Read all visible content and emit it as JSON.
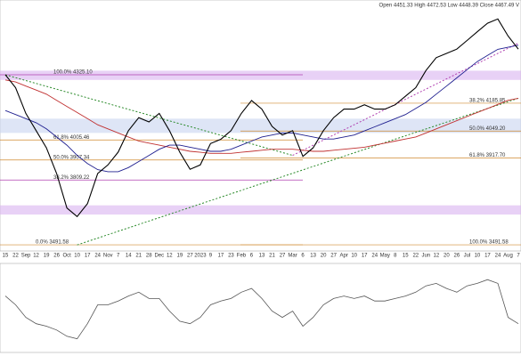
{
  "chart_data": {
    "type": "line",
    "header": "Open 4451.33  High 4472.53  Low 4448.39  Close 4467.49  V",
    "categories": [
      "15",
      "22",
      "Sep",
      "12",
      "19",
      "26",
      "Oct",
      "10",
      "17",
      "24",
      "Nov",
      "7",
      "14",
      "21",
      "28",
      "Dec",
      "12",
      "19",
      "27",
      "2023",
      "9",
      "17",
      "23",
      "Feb",
      "6",
      "13",
      "21",
      "27",
      "Mar",
      "6",
      "13",
      "20",
      "27",
      "Apr",
      "10",
      "17",
      "24",
      "May",
      "8",
      "15",
      "22",
      "Jun",
      "12",
      "20",
      "26",
      "Jul",
      "10",
      "17",
      "24",
      "Aug",
      "7"
    ],
    "series": [
      {
        "color": "#000000",
        "values": [
          4325,
          4262,
          4136,
          4051,
          3967,
          3841,
          3672,
          3630,
          3693,
          3841,
          3883,
          3946,
          4051,
          4115,
          4094,
          4136,
          4051,
          3946,
          3862,
          3883,
          3988,
          4009,
          4051,
          4136,
          4199,
          4157,
          4072,
          4030,
          4051,
          3925,
          3967,
          4051,
          4115,
          4157,
          4157,
          4178,
          4157,
          4157,
          4178,
          4220,
          4262,
          4346,
          4409,
          4430,
          4451,
          4493,
          4536,
          4578,
          4599,
          4515,
          4451
        ]
      },
      {
        "color": "#1f1f8f",
        "values": [
          4150,
          4130,
          4110,
          4090,
          4060,
          4020,
          3980,
          3930,
          3890,
          3860,
          3850,
          3850,
          3870,
          3900,
          3930,
          3960,
          3980,
          3980,
          3970,
          3960,
          3950,
          3950,
          3960,
          3980,
          4000,
          4020,
          4030,
          4040,
          4040,
          4030,
          4020,
          4010,
          4010,
          4020,
          4030,
          4050,
          4070,
          4090,
          4110,
          4130,
          4160,
          4190,
          4230,
          4270,
          4310,
          4350,
          4390,
          4420,
          4450,
          4460,
          4470
        ]
      },
      {
        "color": "#c03030",
        "values": [
          4300,
          4290,
          4270,
          4250,
          4230,
          4200,
          4170,
          4140,
          4110,
          4080,
          4060,
          4040,
          4020,
          4000,
          3990,
          3980,
          3970,
          3960,
          3950,
          3945,
          3940,
          3940,
          3940,
          3945,
          3950,
          3955,
          3960,
          3960,
          3960,
          3955,
          3950,
          3950,
          3955,
          3960,
          3965,
          3970,
          3980,
          3990,
          4000,
          4010,
          4020,
          4040,
          4060,
          4080,
          4100,
          4120,
          4140,
          4160,
          4180,
          4200,
          4210
        ]
      }
    ],
    "ylim": [
      3470,
      4683
    ],
    "bands": [
      {
        "range": [
          4300,
          4345
        ],
        "color": "#d9b3f0"
      },
      {
        "range": [
          3640,
          3685
        ],
        "color": "#d9b3f0"
      },
      {
        "range": [
          4040,
          4110
        ],
        "color": "#c8d4f0"
      }
    ],
    "levels": [
      {
        "value": 4325.1,
        "label": "100.0% 4325.10",
        "color": "#b040b0",
        "side": "left"
      },
      {
        "value": 4005.46,
        "label": "61.8% 4005.46",
        "color": "#d08a30",
        "side": "left"
      },
      {
        "value": 3907.34,
        "label": "50.0% 3907.34",
        "color": "#d08a30",
        "side": "left"
      },
      {
        "value": 3809.22,
        "label": "38.2% 3809.22",
        "color": "#b040b0",
        "side": "left"
      },
      {
        "value": 3491.58,
        "label": "0.0% 3491.58",
        "color": "#d08a30",
        "side": "left"
      },
      {
        "value": 4185.85,
        "label": "38.2% 4185.85",
        "color": "#d08a30",
        "side": "right"
      },
      {
        "value": 4049.2,
        "label": "50.0% 4049.20",
        "color": "#d08a30",
        "side": "right"
      },
      {
        "value": 3917.7,
        "label": "61.8% 3917.70",
        "color": "#d08a30",
        "side": "right"
      },
      {
        "value": 3491.58,
        "label": "100.0% 3491.58",
        "color": "#d08a30",
        "side": "right"
      }
    ],
    "trendlines": [
      {
        "from": [
          7,
          3491
        ],
        "to": [
          50,
          4210
        ],
        "color": "#2a8a2a"
      },
      {
        "from": [
          0,
          4325
        ],
        "to": [
          28,
          3930
        ],
        "color": "#2a8a2a"
      },
      {
        "from": [
          28,
          3930
        ],
        "to": [
          50,
          4480
        ],
        "color": "#b040b0"
      }
    ],
    "rsi": {
      "color": "#555555",
      "values": [
        62,
        55,
        45,
        40,
        38,
        35,
        30,
        28,
        40,
        55,
        55,
        58,
        62,
        65,
        60,
        60,
        50,
        42,
        40,
        45,
        55,
        58,
        60,
        65,
        68,
        60,
        50,
        45,
        50,
        38,
        45,
        55,
        60,
        62,
        60,
        62,
        58,
        58,
        60,
        62,
        65,
        70,
        72,
        68,
        65,
        70,
        72,
        75,
        72,
        45,
        40
      ],
      "ylim": [
        20,
        85
      ]
    }
  }
}
